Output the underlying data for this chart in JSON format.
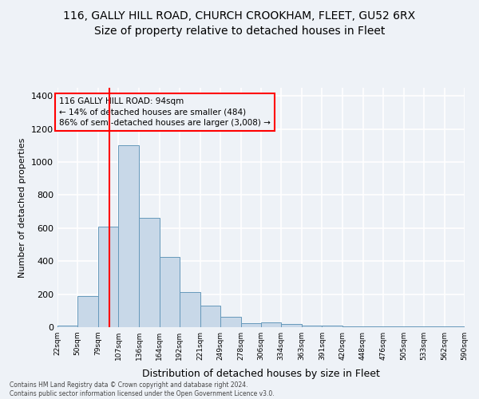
{
  "title1": "116, GALLY HILL ROAD, CHURCH CROOKHAM, FLEET, GU52 6RX",
  "title2": "Size of property relative to detached houses in Fleet",
  "xlabel": "Distribution of detached houses by size in Fleet",
  "ylabel": "Number of detached properties",
  "bar_color": "#c8d8e8",
  "bar_edge_color": "#6699bb",
  "red_line_x": 94,
  "annotation_text": "116 GALLY HILL ROAD: 94sqm\n← 14% of detached houses are smaller (484)\n86% of semi-detached houses are larger (3,008) →",
  "bins": [
    22,
    50,
    79,
    107,
    136,
    164,
    192,
    221,
    249,
    278,
    306,
    334,
    363,
    391,
    420,
    448,
    476,
    505,
    533,
    562,
    590
  ],
  "values": [
    10,
    190,
    610,
    1100,
    660,
    425,
    215,
    130,
    65,
    25,
    30,
    20,
    10,
    8,
    5,
    5,
    5,
    3,
    3,
    3
  ],
  "tick_labels": [
    "22sqm",
    "50sqm",
    "79sqm",
    "107sqm",
    "136sqm",
    "164sqm",
    "192sqm",
    "221sqm",
    "249sqm",
    "278sqm",
    "306sqm",
    "334sqm",
    "363sqm",
    "391sqm",
    "420sqm",
    "448sqm",
    "476sqm",
    "505sqm",
    "533sqm",
    "562sqm",
    "590sqm"
  ],
  "ylim": [
    0,
    1450
  ],
  "yticks": [
    0,
    200,
    400,
    600,
    800,
    1000,
    1200,
    1400
  ],
  "footnote": "Contains HM Land Registry data © Crown copyright and database right 2024.\nContains public sector information licensed under the Open Government Licence v3.0.",
  "bg_color": "#eef2f7",
  "grid_color": "#ffffff",
  "title1_fontsize": 10,
  "title2_fontsize": 10
}
